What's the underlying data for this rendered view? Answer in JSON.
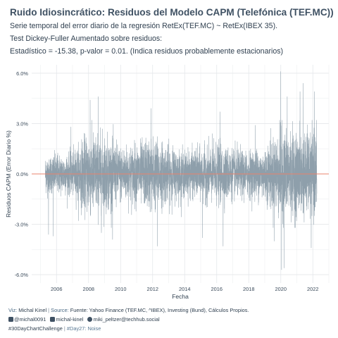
{
  "header": {
    "title": "Ruido Idiosincrático: Residuos del Modelo CAPM (Telefónica (TEF.MC))",
    "subtitle_line1": "Serie temporal del error diario de la regresión RetEx(TEF.MC) ~ RetEx(IBEX 35).",
    "subtitle_line2": "Test Dickey-Fuller Aumentado sobre residuos:",
    "subtitle_line3": "Estadístico = -15.38, p-valor = 0.01. (Indica residuos probablemente estacionarios)"
  },
  "footer": {
    "viz_label": "Viz:",
    "viz_author": "Michal Kinel",
    "separator": "|",
    "source_label": "Source:",
    "source_text": "Fuente: Yahoo Finance (TEF.MC, ^IBEX), Investing (Bund), Cálculos Propios.",
    "handle_x": "@michal0091",
    "handle_linkedin": "michal-kinel",
    "handle_mastodon": "miki_peltzer@techhub.social",
    "tag1": "#30DayChartChallenge",
    "tag_sep": "|",
    "tag2": "#Day27: Noise"
  },
  "colors": {
    "series": "#8e9fab",
    "zero_line": "#e8836c",
    "grid": "#e4e7ea",
    "title": "#3f5163"
  },
  "chart_data": {
    "type": "line",
    "title": "Ruido Idiosincrático: Residuos del Modelo CAPM (Telefónica (TEF.MC))",
    "xlabel": "Fecha",
    "ylabel": "Residuos CAPM (Error Diario %)",
    "x_range": [
      "2005-04-01",
      "2022-03-31"
    ],
    "xlim": [
      2004.45,
      2023.0
    ],
    "ylim": [
      -6.5,
      6.5
    ],
    "x_ticks": [
      "2006",
      "2008",
      "2010",
      "2012",
      "2014",
      "2016",
      "2018",
      "2020",
      "2022"
    ],
    "y_ticks": [
      "6.0%",
      "3.0%",
      "0.0%",
      "-3.0%",
      "-6.0%"
    ],
    "y_tick_values": [
      6,
      3,
      0,
      -3,
      -6
    ],
    "reference_line": 0,
    "grid": true,
    "volatility_envelope": [
      {
        "x": 2005.3,
        "sd": 0.55
      },
      {
        "x": 2007.0,
        "sd": 0.6
      },
      {
        "x": 2008.0,
        "sd": 1.2
      },
      {
        "x": 2009.0,
        "sd": 1.1
      },
      {
        "x": 2010.0,
        "sd": 0.8
      },
      {
        "x": 2011.0,
        "sd": 0.85
      },
      {
        "x": 2012.0,
        "sd": 1.05
      },
      {
        "x": 2013.0,
        "sd": 0.8
      },
      {
        "x": 2014.0,
        "sd": 0.65
      },
      {
        "x": 2015.0,
        "sd": 0.7
      },
      {
        "x": 2016.0,
        "sd": 0.85
      },
      {
        "x": 2017.0,
        "sd": 0.7
      },
      {
        "x": 2018.0,
        "sd": 0.65
      },
      {
        "x": 2019.0,
        "sd": 0.75
      },
      {
        "x": 2020.0,
        "sd": 1.3
      },
      {
        "x": 2021.0,
        "sd": 1.15
      },
      {
        "x": 2022.2,
        "sd": 1.2
      }
    ],
    "notable_points": [
      {
        "x": 2005.5,
        "y": -3.6
      },
      {
        "x": 2005.8,
        "y": -3.7
      },
      {
        "x": 2006.9,
        "y": 2.8
      },
      {
        "x": 2008.1,
        "y": 4.4
      },
      {
        "x": 2008.6,
        "y": 4.6
      },
      {
        "x": 2008.8,
        "y": -3.5
      },
      {
        "x": 2009.5,
        "y": -3.9
      },
      {
        "x": 2011.9,
        "y": 3.9
      },
      {
        "x": 2012.3,
        "y": -4.3
      },
      {
        "x": 2015.1,
        "y": -3.8
      },
      {
        "x": 2016.2,
        "y": 3.7
      },
      {
        "x": 2016.4,
        "y": -4.3
      },
      {
        "x": 2018.4,
        "y": 2.9
      },
      {
        "x": 2019.6,
        "y": -4.0
      },
      {
        "x": 2020.0,
        "y": 6.1
      },
      {
        "x": 2020.05,
        "y": -5.7
      },
      {
        "x": 2020.2,
        "y": -5.6
      },
      {
        "x": 2020.4,
        "y": 4.6
      },
      {
        "x": 2021.2,
        "y": 4.9
      },
      {
        "x": 2021.4,
        "y": 5.4
      },
      {
        "x": 2021.9,
        "y": -4.4
      },
      {
        "x": 2022.1,
        "y": 4.9
      }
    ]
  }
}
